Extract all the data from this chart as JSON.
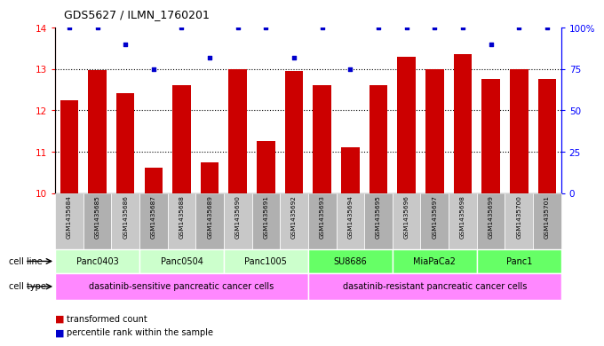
{
  "title": "GDS5627 / ILMN_1760201",
  "samples": [
    "GSM1435684",
    "GSM1435685",
    "GSM1435686",
    "GSM1435687",
    "GSM1435688",
    "GSM1435689",
    "GSM1435690",
    "GSM1435691",
    "GSM1435692",
    "GSM1435693",
    "GSM1435694",
    "GSM1435695",
    "GSM1435696",
    "GSM1435697",
    "GSM1435698",
    "GSM1435699",
    "GSM1435700",
    "GSM1435701"
  ],
  "bar_values": [
    12.25,
    12.97,
    12.42,
    10.62,
    12.6,
    10.75,
    13.0,
    11.25,
    12.95,
    12.62,
    11.1,
    12.62,
    13.3,
    13.0,
    13.35,
    12.77,
    13.0,
    12.77
  ],
  "percentile_values": [
    100,
    100,
    90,
    75,
    100,
    82,
    100,
    100,
    82,
    100,
    75,
    100,
    100,
    100,
    100,
    90,
    100,
    100
  ],
  "ylim": [
    10,
    14
  ],
  "yticks_left": [
    10,
    11,
    12,
    13,
    14
  ],
  "yticks_right_vals": [
    0,
    25,
    50,
    75,
    100
  ],
  "yticks_right_labels": [
    "0",
    "25",
    "50",
    "75",
    "100%"
  ],
  "bar_color": "#cc0000",
  "dot_color": "#0000cc",
  "cell_lines": [
    {
      "label": "Panc0403",
      "start": 0,
      "end": 3,
      "color": "#ccffcc"
    },
    {
      "label": "Panc0504",
      "start": 3,
      "end": 6,
      "color": "#ccffcc"
    },
    {
      "label": "Panc1005",
      "start": 6,
      "end": 9,
      "color": "#ccffcc"
    },
    {
      "label": "SU8686",
      "start": 9,
      "end": 12,
      "color": "#66ff66"
    },
    {
      "label": "MiaPaCa2",
      "start": 12,
      "end": 15,
      "color": "#66ff66"
    },
    {
      "label": "Panc1",
      "start": 15,
      "end": 18,
      "color": "#66ff66"
    }
  ],
  "cell_types": [
    {
      "label": "dasatinib-sensitive pancreatic cancer cells",
      "start": 0,
      "end": 9,
      "color": "#ff88ff"
    },
    {
      "label": "dasatinib-resistant pancreatic cancer cells",
      "start": 9,
      "end": 18,
      "color": "#ff88ff"
    }
  ],
  "legend_red_label": "transformed count",
  "legend_blue_label": "percentile rank within the sample",
  "bar_width": 0.65,
  "tick_bg_even": "#c8c8c8",
  "tick_bg_odd": "#b0b0b0"
}
